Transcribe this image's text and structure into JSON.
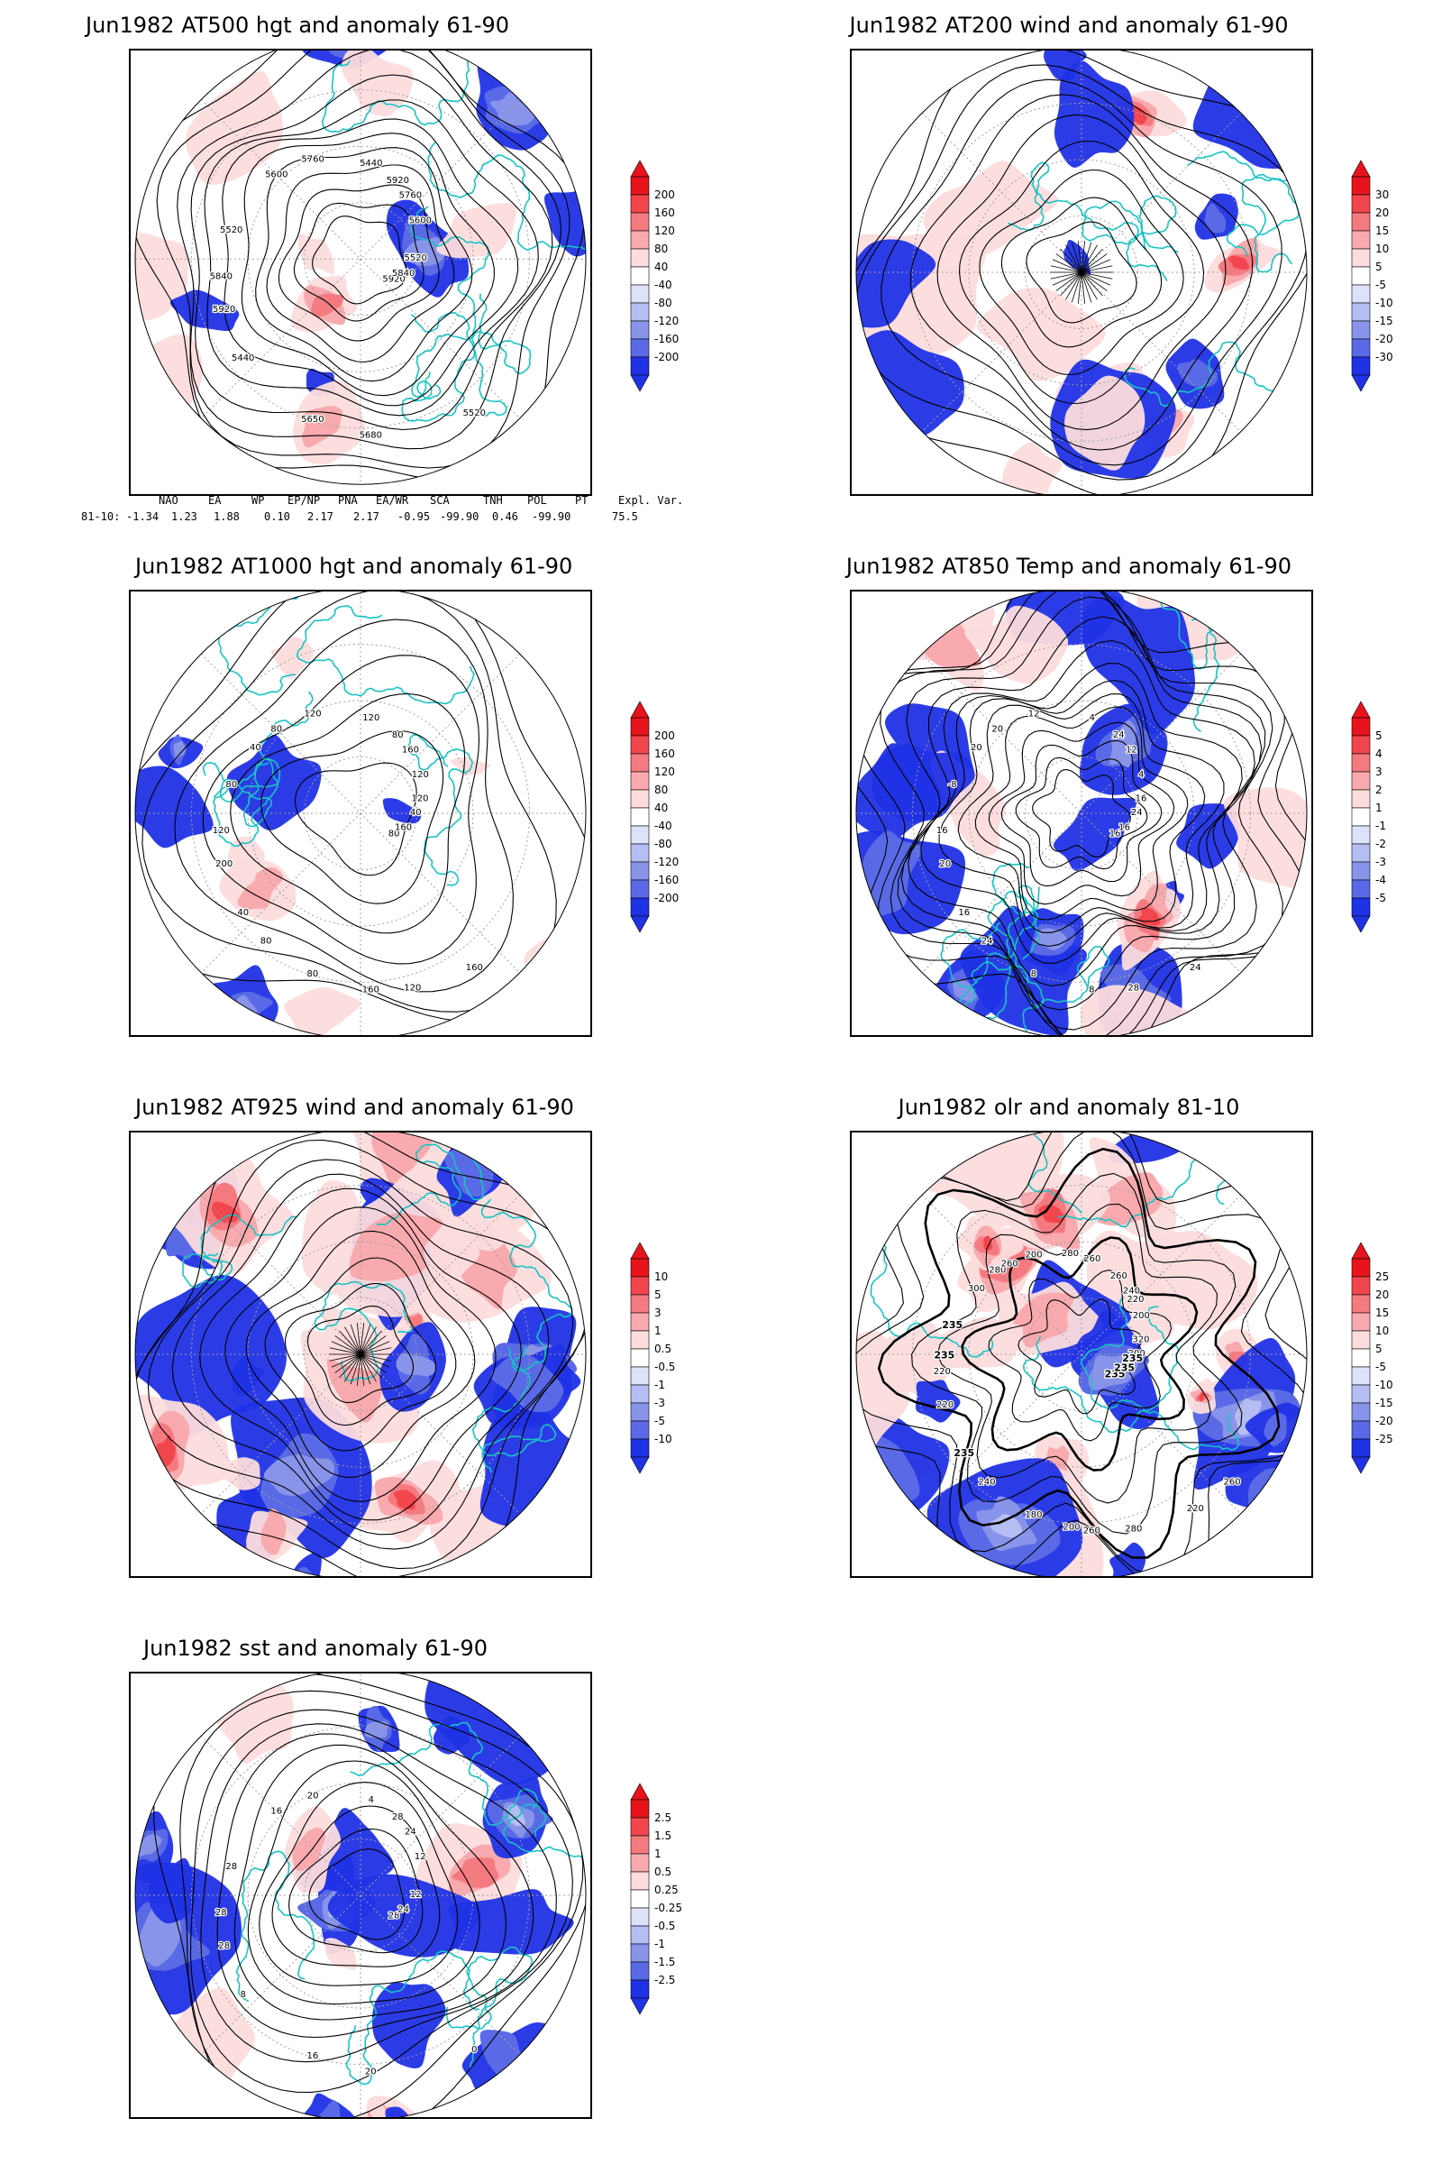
{
  "panels": [
    {
      "id": "z500",
      "title": "Jun1982 AT500 hgt and anomaly 61-90",
      "colorbar": [
        "200",
        "160",
        "120",
        "80",
        "40",
        "-40",
        "-80",
        "-120",
        "-160",
        "-200"
      ],
      "contour_labels": [
        "5920",
        "5840",
        "5760",
        "5680",
        "5600",
        "5520",
        "5440",
        "5440",
        "5520",
        "5520",
        "5600",
        "5650",
        "5760",
        "5840",
        "5920",
        "5920"
      ]
    },
    {
      "id": "wind200",
      "title": "Jun1982 AT200 wind and anomaly 61-90",
      "colorbar": [
        "30",
        "20",
        "15",
        "10",
        "5",
        "-5",
        "-10",
        "-15",
        "-20",
        "-30"
      ],
      "contour_labels": []
    },
    {
      "id": "z1000",
      "title": "Jun1982 AT1000 hgt and anomaly 61-90",
      "colorbar": [
        "200",
        "160",
        "120",
        "80",
        "40",
        "-40",
        "-80",
        "-120",
        "-160",
        "-200"
      ],
      "contour_labels": [
        "80",
        "120",
        "160",
        "160",
        "80",
        "40",
        "40",
        "120",
        "160",
        "80",
        "120",
        "80",
        "120",
        "160",
        "200",
        "80",
        "120",
        "40",
        "120",
        "80"
      ]
    },
    {
      "id": "t850",
      "title": "Jun1982 AT850 Temp and anomaly 61-90",
      "colorbar": [
        "5",
        "4",
        "3",
        "2",
        "1",
        "-1",
        "-2",
        "-3",
        "-4",
        "-5"
      ],
      "contour_labels": [
        "16",
        "16",
        "12",
        "8",
        "20",
        "24",
        "16",
        "4",
        "24",
        "-8",
        "4",
        "8",
        "12",
        "16",
        "20",
        "24",
        "28",
        "20",
        "16",
        "24"
      ]
    },
    {
      "id": "wind925",
      "title": "Jun1982 AT925 wind and anomaly 61-90",
      "colorbar": [
        "10",
        "5",
        "3",
        "1",
        "0.5",
        "-0.5",
        "-1",
        "-3",
        "-5",
        "-10"
      ],
      "contour_labels": []
    },
    {
      "id": "olr",
      "title": "Jun1982 olr and anomaly 81-10",
      "colorbar": [
        "25",
        "20",
        "15",
        "10",
        "5",
        "-5",
        "-10",
        "-15",
        "-20",
        "-25"
      ],
      "contour_labels": [
        "235",
        "220",
        "240",
        "260",
        "280",
        "200",
        "235",
        "260",
        "220",
        "235",
        "200",
        "180",
        "200",
        "235",
        "220",
        "260",
        "280",
        "300",
        "320",
        "240",
        "280",
        "260",
        "235",
        "220",
        "200",
        "260",
        "235"
      ]
    },
    {
      "id": "sst",
      "title": "Jun1982 sst and anomaly 61-90",
      "colorbar": [
        "2.5",
        "1.5",
        "1",
        "0.5",
        "0.25",
        "-0.25",
        "-0.5",
        "-1",
        "-1.5",
        "-2.5"
      ],
      "contour_labels": [
        "28",
        "28",
        "24",
        "20",
        "16",
        "12",
        "8",
        "4",
        "0",
        "28",
        "12",
        "16",
        "20",
        "24",
        "28",
        "28"
      ]
    }
  ],
  "teleconnection": {
    "headers": [
      "NAO",
      "EA",
      "WP",
      "EP/NP",
      "PNA",
      "EA/WR",
      "SCA",
      "TNH",
      "POL",
      "PT",
      "Expl. Var."
    ],
    "row_label": "81-10:",
    "values": [
      "-1.34",
      "1.23",
      "1.88",
      "0.10",
      "2.17",
      "2.17",
      "-0.95",
      "-99.90",
      "0.46",
      "-99.90",
      "75.5"
    ]
  },
  "colors": {
    "coast": "#19c3c3",
    "contour": "#000000",
    "graticule": "#a0a0a0",
    "colorbar": [
      "#e8141c",
      "#f2464e",
      "#f57a80",
      "#f8aaae",
      "#fcdcdd",
      "#ffffff",
      "#dce2fa",
      "#b4bef2",
      "#8894ea",
      "#5a6ae6",
      "#2032e6"
    ]
  }
}
